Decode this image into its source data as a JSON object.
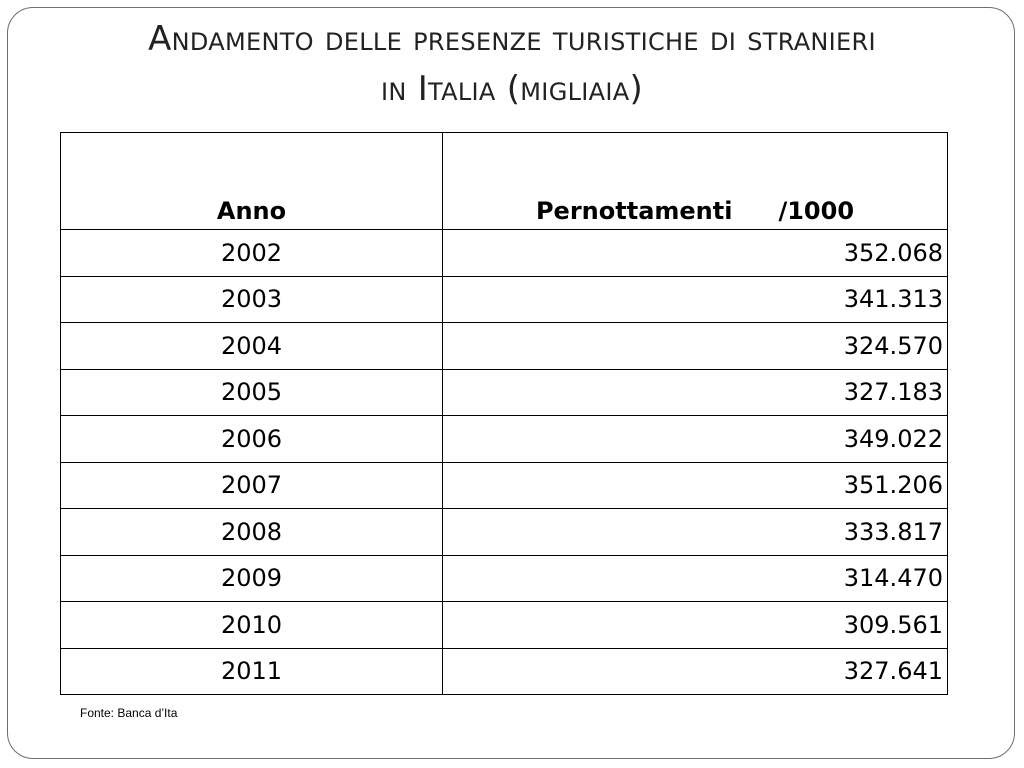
{
  "title": {
    "line1": "Andamento delle presenze turistiche di stranieri",
    "line2": "in Italia (migliaia)"
  },
  "table": {
    "headers": {
      "year": "Anno",
      "value": "Pernottamenti",
      "unit": "/1000"
    },
    "rows": [
      {
        "year": "2002",
        "value": "352.068"
      },
      {
        "year": "2003",
        "value": "341.313"
      },
      {
        "year": "2004",
        "value": "324.570"
      },
      {
        "year": "2005",
        "value": "327.183"
      },
      {
        "year": "2006",
        "value": "349.022"
      },
      {
        "year": "2007",
        "value": "351.206"
      },
      {
        "year": "2008",
        "value": "333.817"
      },
      {
        "year": "2009",
        "value": "314.470"
      },
      {
        "year": "2010",
        "value": "309.561"
      },
      {
        "year": "2011",
        "value": "327.641"
      }
    ]
  },
  "source": "Fonte: Banca d’Ita"
}
